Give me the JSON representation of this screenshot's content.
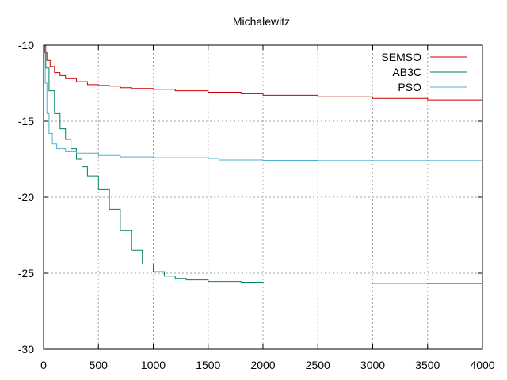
{
  "chart_data": {
    "type": "line",
    "title": "Michalewitz",
    "xlabel": "",
    "ylabel": "",
    "xlim": [
      0,
      4000
    ],
    "ylim": [
      -30,
      -10
    ],
    "x_ticks": [
      0,
      500,
      1000,
      1500,
      2000,
      2500,
      3000,
      3500,
      4000
    ],
    "y_ticks": [
      -30,
      -25,
      -20,
      -15,
      -10
    ],
    "grid": true,
    "legend_position": "top-right",
    "series": [
      {
        "name": "SEMSO",
        "color": "#cc0000",
        "points": [
          [
            0,
            -10
          ],
          [
            10,
            -10.5
          ],
          [
            30,
            -11.0
          ],
          [
            60,
            -11.4
          ],
          [
            100,
            -11.8
          ],
          [
            150,
            -12.0
          ],
          [
            200,
            -12.2
          ],
          [
            300,
            -12.4
          ],
          [
            400,
            -12.6
          ],
          [
            500,
            -12.65
          ],
          [
            600,
            -12.7
          ],
          [
            700,
            -12.8
          ],
          [
            800,
            -12.85
          ],
          [
            1000,
            -12.9
          ],
          [
            1200,
            -13.0
          ],
          [
            1500,
            -13.1
          ],
          [
            1800,
            -13.2
          ],
          [
            2000,
            -13.3
          ],
          [
            2500,
            -13.4
          ],
          [
            3000,
            -13.5
          ],
          [
            3500,
            -13.6
          ],
          [
            4000,
            -13.7
          ]
        ]
      },
      {
        "name": "AB3C",
        "color": "#008060",
        "points": [
          [
            0,
            -10
          ],
          [
            20,
            -11.5
          ],
          [
            50,
            -13.0
          ],
          [
            100,
            -14.5
          ],
          [
            150,
            -15.5
          ],
          [
            200,
            -16.2
          ],
          [
            250,
            -16.8
          ],
          [
            300,
            -17.5
          ],
          [
            350,
            -18.0
          ],
          [
            400,
            -18.6
          ],
          [
            500,
            -19.5
          ],
          [
            600,
            -20.8
          ],
          [
            700,
            -22.2
          ],
          [
            800,
            -23.5
          ],
          [
            900,
            -24.4
          ],
          [
            1000,
            -24.9
          ],
          [
            1100,
            -25.2
          ],
          [
            1200,
            -25.35
          ],
          [
            1300,
            -25.45
          ],
          [
            1500,
            -25.55
          ],
          [
            1800,
            -25.6
          ],
          [
            2000,
            -25.65
          ],
          [
            2500,
            -25.65
          ],
          [
            3000,
            -25.67
          ],
          [
            3500,
            -25.68
          ],
          [
            4000,
            -25.7
          ]
        ]
      },
      {
        "name": "PSO",
        "color": "#4ab0d0",
        "points": [
          [
            0,
            -10
          ],
          [
            15,
            -12.5
          ],
          [
            30,
            -14.5
          ],
          [
            50,
            -15.8
          ],
          [
            80,
            -16.5
          ],
          [
            120,
            -16.8
          ],
          [
            200,
            -17.0
          ],
          [
            300,
            -17.1
          ],
          [
            500,
            -17.25
          ],
          [
            700,
            -17.35
          ],
          [
            1000,
            -17.4
          ],
          [
            1500,
            -17.45
          ],
          [
            1600,
            -17.55
          ],
          [
            2000,
            -17.58
          ],
          [
            2500,
            -17.6
          ],
          [
            3000,
            -17.6
          ],
          [
            4000,
            -17.6
          ]
        ]
      }
    ]
  }
}
